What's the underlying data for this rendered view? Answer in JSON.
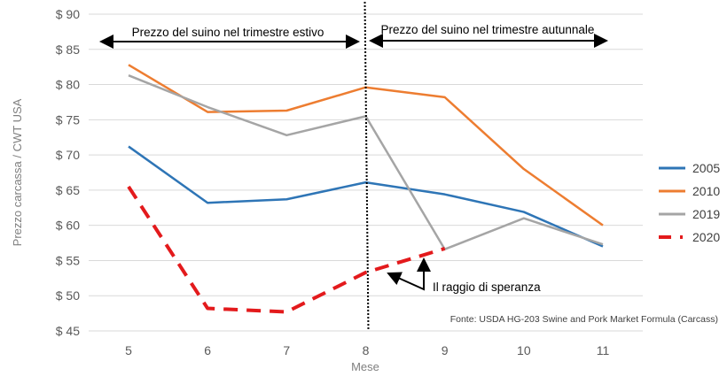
{
  "chart_data": {
    "type": "line",
    "title": "",
    "xlabel": "Mese",
    "ylabel": "Prezzo carcassa / CWT USA",
    "x": [
      5,
      6,
      7,
      8,
      9,
      10,
      11
    ],
    "ylim": [
      45,
      90
    ],
    "yticks": [
      45,
      50,
      55,
      60,
      65,
      70,
      75,
      80,
      85,
      90
    ],
    "ytick_prefix": "$ ",
    "grid": "horizontal",
    "legend_position": "right",
    "series": [
      {
        "name": "2005",
        "color": "#2E75B6",
        "style": "solid",
        "values": [
          71.2,
          63.2,
          63.7,
          66.1,
          64.4,
          61.9,
          57.0
        ]
      },
      {
        "name": "2010",
        "color": "#ED7D31",
        "style": "solid",
        "values": [
          82.8,
          76.1,
          76.3,
          79.6,
          78.2,
          68.0,
          60.0
        ]
      },
      {
        "name": "2019",
        "color": "#A5A5A5",
        "style": "solid",
        "values": [
          81.3,
          76.8,
          72.8,
          75.5,
          56.6,
          61.0,
          57.3
        ]
      },
      {
        "name": "2020",
        "color": "#E31A1C",
        "style": "dashed",
        "values": [
          65.5,
          48.2,
          47.7,
          53.3,
          56.7,
          null,
          null
        ]
      }
    ],
    "annotations": {
      "divider_x": 8,
      "summer": "Prezzo del suino nel trimestre estivo",
      "autumn": "Prezzo del suino nel trimestre autunnale",
      "hope": "Il raggio di speranza",
      "source": "Fonte: USDA HG-203 Swine and Pork Market Formula (Carcass)"
    }
  }
}
